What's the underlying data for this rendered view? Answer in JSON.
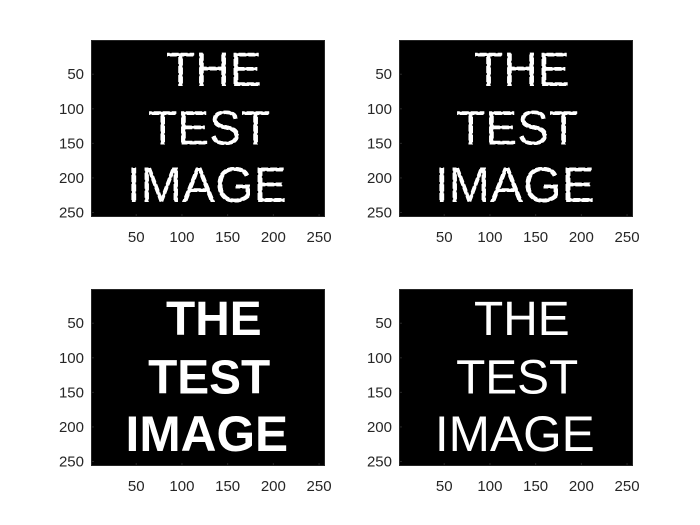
{
  "chart_data": {
    "type": "image-grid",
    "panels": [
      {
        "id": "top-left",
        "lines": [
          "THE",
          "TEST",
          "IMAGE"
        ],
        "style": "edge-noisy",
        "xlim": [
          1,
          256
        ],
        "ylim": [
          1,
          256
        ],
        "xticks": [
          50,
          100,
          150,
          200,
          250
        ],
        "yticks": [
          50,
          100,
          150,
          200,
          250
        ]
      },
      {
        "id": "top-right",
        "lines": [
          "THE",
          "TEST",
          "IMAGE"
        ],
        "style": "edge-noisy",
        "xlim": [
          1,
          256
        ],
        "ylim": [
          1,
          256
        ],
        "xticks": [
          50,
          100,
          150,
          200,
          250
        ],
        "yticks": [
          50,
          100,
          150,
          200,
          250
        ]
      },
      {
        "id": "bottom-left",
        "lines": [
          "THE",
          "TEST",
          "IMAGE"
        ],
        "style": "bold",
        "xlim": [
          1,
          256
        ],
        "ylim": [
          1,
          256
        ],
        "xticks": [
          50,
          100,
          150,
          200,
          250
        ],
        "yticks": [
          50,
          100,
          150,
          200,
          250
        ]
      },
      {
        "id": "bottom-right",
        "lines": [
          "THE",
          "TEST",
          "IMAGE"
        ],
        "style": "thin",
        "xlim": [
          1,
          256
        ],
        "ylim": [
          1,
          256
        ],
        "xticks": [
          50,
          100,
          150,
          200,
          250
        ],
        "yticks": [
          50,
          100,
          150,
          200,
          250
        ]
      }
    ]
  },
  "colors": {
    "image_background": "#000000",
    "text": "#ffffff",
    "tick_labels": "#262626"
  }
}
